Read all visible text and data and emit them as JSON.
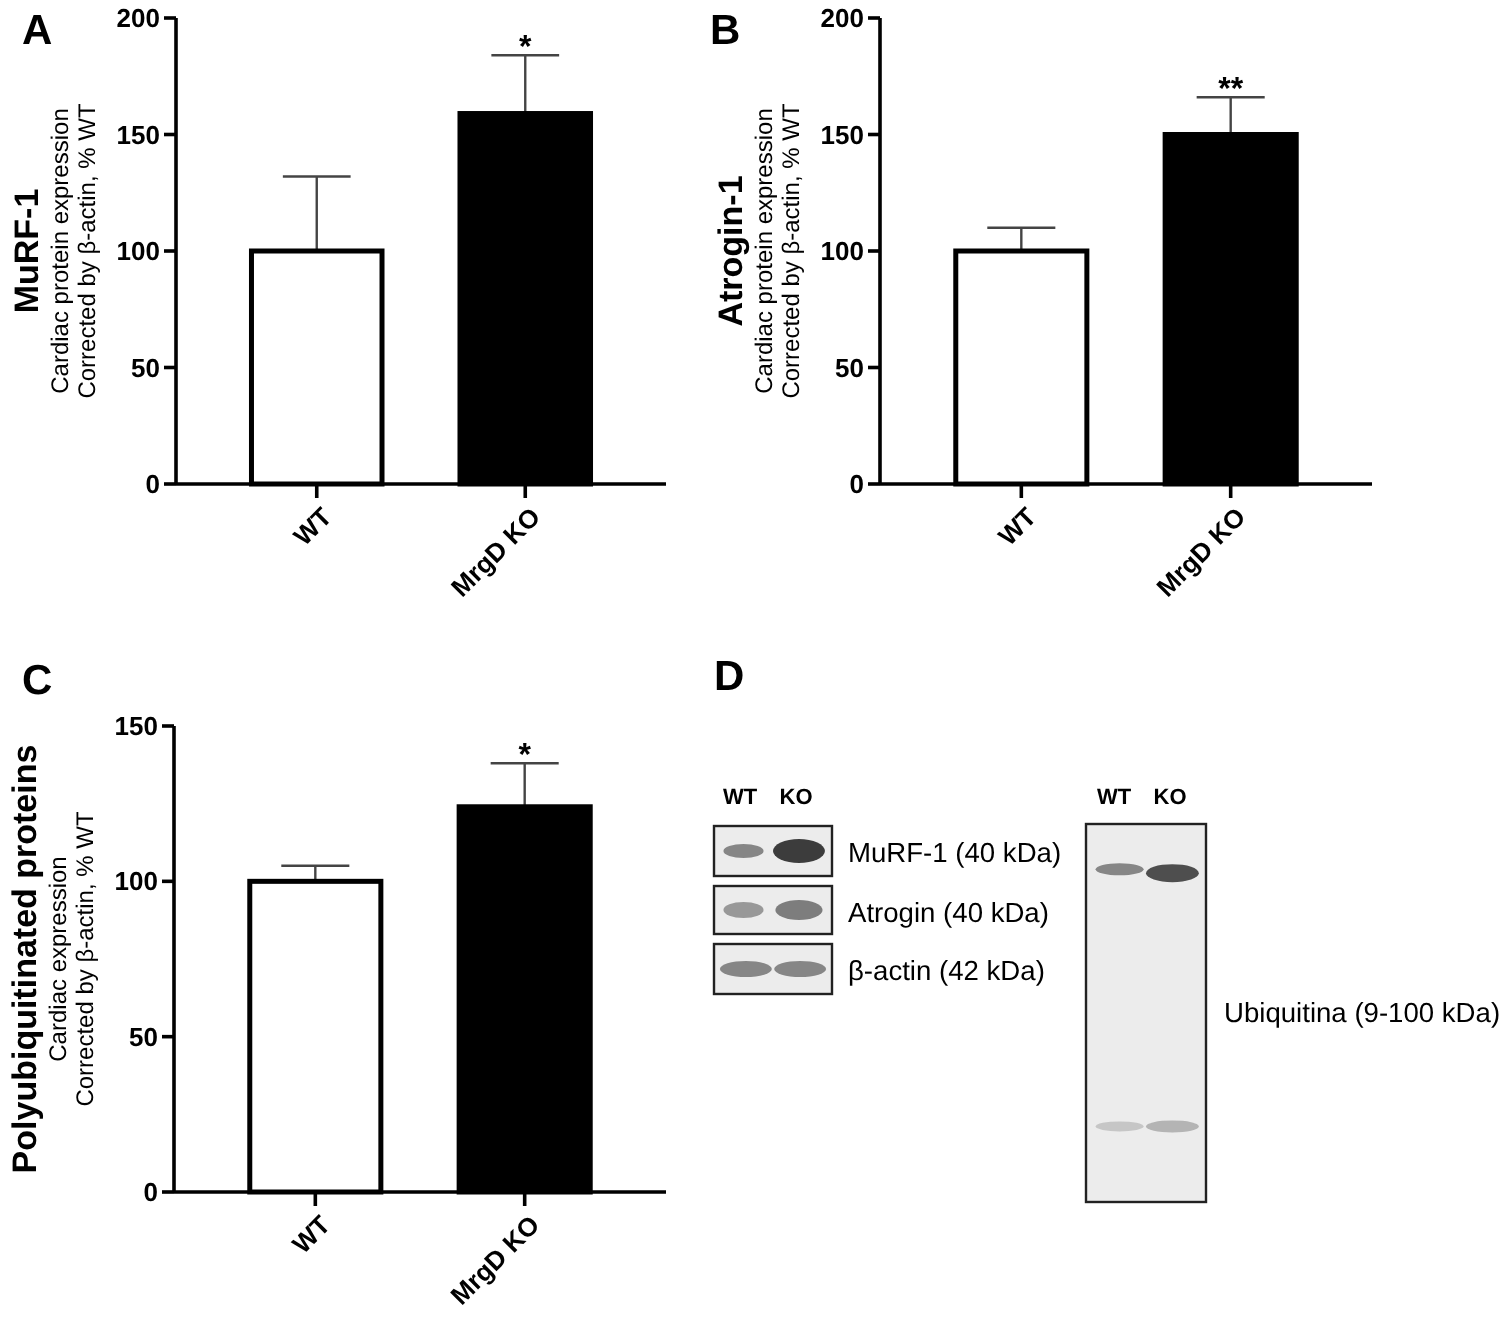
{
  "chart_data": [
    {
      "type": "bar",
      "title": "A",
      "ylabel": "MuRF-1\nCardiac protein expression\nCorrected by β-actin, % WT",
      "categories": [
        "WT",
        "MrgD KO"
      ],
      "values": [
        100,
        159
      ],
      "colors": [
        "#ffffff",
        "#000000"
      ],
      "errors": [
        [
          100,
          132
        ],
        [
          159,
          184
        ]
      ],
      "ylim": [
        0,
        200
      ],
      "yticks": [
        0,
        50,
        100,
        150,
        200
      ],
      "annotations": [
        "*"
      ]
    },
    {
      "type": "bar",
      "title": "B",
      "ylabel": "Atrogin-1\nCardiac protein expression\nCorrected by β-actin, % WT",
      "categories": [
        "WT",
        "MrgD KO"
      ],
      "values": [
        100,
        150
      ],
      "colors": [
        "#ffffff",
        "#000000"
      ],
      "errors": [
        [
          100,
          110
        ],
        [
          150,
          166
        ]
      ],
      "ylim": [
        0,
        200
      ],
      "yticks": [
        0,
        50,
        100,
        150,
        200
      ],
      "annotations": [
        "**"
      ]
    },
    {
      "type": "bar",
      "title": "C",
      "ylabel": "Polyubiquitinated proteins\nCardiac expression\nCorrected by β-actin, % WT",
      "categories": [
        "WT",
        "MrgD KO"
      ],
      "values": [
        100,
        124
      ],
      "colors": [
        "#ffffff",
        "#000000"
      ],
      "errors": [
        [
          100,
          105
        ],
        [
          124,
          138
        ]
      ],
      "ylim": [
        0,
        150
      ],
      "yticks": [
        0,
        50,
        100,
        150
      ],
      "annotations": [
        "*"
      ]
    },
    {
      "type": "other",
      "title": "D",
      "annotations": [
        "WT",
        "KO",
        "MuRF-1 (40 kDa)",
        "Atrogin (40 kDa)",
        "β-actin (42 kDa)",
        "WT",
        "KO",
        "Ubiquitina (9-100 kDa)"
      ]
    }
  ]
}
